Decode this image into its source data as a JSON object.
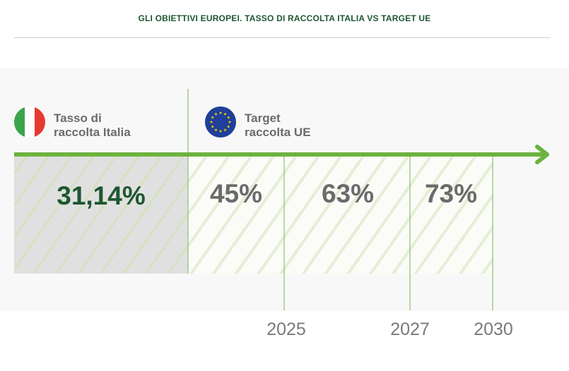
{
  "header": {
    "title": "GLI OBIETTIVI EUROPEI. TASSO DI RACCOLTA ITALIA VS TARGET UE"
  },
  "chart_data": {
    "type": "table",
    "italy": {
      "label_line1": "Tasso di",
      "label_line2": "raccolta Italia",
      "value": "31,14%"
    },
    "eu": {
      "label_line1": "Target",
      "label_line2": "raccolta UE"
    },
    "targets": [
      {
        "year": "2025",
        "value": "45%"
      },
      {
        "year": "2027",
        "value": "63%"
      },
      {
        "year": "2030",
        "value": "73%"
      }
    ]
  },
  "colors": {
    "green_arrow": "#6cb33f",
    "dark_green": "#1e5631",
    "grey_text": "#6b6b6b",
    "year_text": "#7a7a7a",
    "panel_grey": "#e2e2e2",
    "flag_green": "#3aa54a",
    "flag_red": "#e63a30",
    "eu_blue": "#1f3f9a",
    "eu_star": "#f5d400"
  }
}
